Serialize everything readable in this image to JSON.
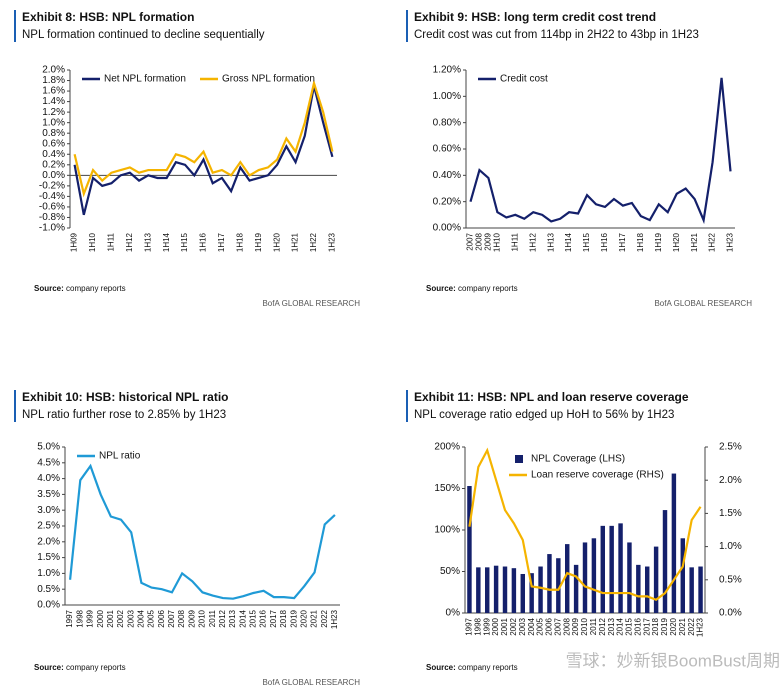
{
  "chart_data": [
    {
      "type": "line",
      "title": "Exhibit 8: HSB: NPL formation",
      "subtitle": "NPL formation continued to decline sequentially",
      "categories": [
        "1H09",
        null,
        "1H10",
        null,
        "1H11",
        null,
        "1H12",
        null,
        "1H13",
        null,
        "1H14",
        null,
        "1H15",
        null,
        "1H16",
        null,
        "1H17",
        null,
        "1H18",
        null,
        "1H19",
        null,
        "1H20",
        null,
        "1H21",
        null,
        "1H22",
        null,
        "1H23"
      ],
      "series": [
        {
          "name": "Net NPL formation",
          "color": "#14206b",
          "values": [
            0.2,
            -0.75,
            -0.05,
            -0.2,
            -0.15,
            0,
            0.05,
            -0.1,
            0,
            -0.05,
            -0.05,
            0.25,
            0.2,
            0,
            0.3,
            -0.15,
            -0.05,
            -0.3,
            0.15,
            -0.1,
            -0.05,
            0,
            0.2,
            0.55,
            0.25,
            0.75,
            1.7,
            1.0,
            0.35
          ]
        },
        {
          "name": "Gross NPL formation",
          "color": "#f5b400",
          "values": [
            0.4,
            -0.35,
            0.1,
            -0.1,
            0.05,
            0.1,
            0.15,
            0.05,
            0.1,
            0.1,
            0.1,
            0.4,
            0.35,
            0.25,
            0.45,
            0.05,
            0.1,
            0,
            0.25,
            0,
            0.1,
            0.15,
            0.3,
            0.7,
            0.45,
            1.0,
            1.75,
            1.2,
            0.45
          ]
        }
      ],
      "ylim": [
        -1.0,
        2.0
      ],
      "yticks": [
        {
          "value": -1.0,
          "label": "-1.0%"
        },
        {
          "value": -0.8,
          "label": "-0.8%"
        },
        {
          "value": -0.6,
          "label": "-0.6%"
        },
        {
          "value": -0.4,
          "label": "-0.4%"
        },
        {
          "value": -0.2,
          "label": "-0.2%"
        },
        {
          "value": 0,
          "label": "0.0%"
        },
        {
          "value": 0.2,
          "label": "0.2%"
        },
        {
          "value": 0.4,
          "label": "0.4%"
        },
        {
          "value": 0.6,
          "label": "0.6%"
        },
        {
          "value": 0.8,
          "label": "0.8%"
        },
        {
          "value": 1.0,
          "label": "1.0%"
        },
        {
          "value": 1.2,
          "label": "1.2%"
        },
        {
          "value": 1.4,
          "label": "1.4%"
        },
        {
          "value": 1.6,
          "label": "1.6%"
        },
        {
          "value": 1.8,
          "label": "1.8%"
        },
        {
          "value": 2.0,
          "label": "2.0%"
        }
      ],
      "source_label": "Source:",
      "source": "company reports",
      "footer": "BofA GLOBAL RESEARCH",
      "legend": "top"
    },
    {
      "type": "line",
      "title": "Exhibit 9: HSB: long term credit cost trend",
      "subtitle": "Credit cost was cut from 114bp in 2H22 to 43bp in 1H23",
      "categories": [
        "2007",
        "2008",
        "2009",
        "1H10",
        null,
        "1H11",
        null,
        "1H12",
        null,
        "1H13",
        null,
        "1H14",
        null,
        "1H15",
        null,
        "1H16",
        null,
        "1H17",
        null,
        "1H18",
        null,
        "1H19",
        null,
        "1H20",
        null,
        "1H21",
        null,
        "1H22",
        null,
        "1H23"
      ],
      "series": [
        {
          "name": "Credit cost",
          "color": "#14206b",
          "values": [
            0.2,
            0.44,
            0.38,
            0.12,
            0.08,
            0.1,
            0.07,
            0.12,
            0.1,
            0.05,
            0.07,
            0.12,
            0.11,
            0.25,
            0.18,
            0.16,
            0.22,
            0.17,
            0.19,
            0.09,
            0.06,
            0.18,
            0.12,
            0.26,
            0.3,
            0.22,
            0.06,
            0.5,
            1.14,
            0.43
          ]
        }
      ],
      "ylim": [
        0,
        1.2
      ],
      "yticks": [
        {
          "value": 0,
          "label": "0.00%"
        },
        {
          "value": 0.2,
          "label": "0.20%"
        },
        {
          "value": 0.4,
          "label": "0.40%"
        },
        {
          "value": 0.6,
          "label": "0.60%"
        },
        {
          "value": 0.8,
          "label": "0.80%"
        },
        {
          "value": 1.0,
          "label": "1.00%"
        },
        {
          "value": 1.2,
          "label": "1.20%"
        }
      ],
      "source_label": "Source:",
      "source": "company reports",
      "footer": "BofA GLOBAL RESEARCH",
      "legend": "top"
    },
    {
      "type": "line",
      "title": "Exhibit 10: HSB: historical NPL ratio",
      "subtitle": "NPL ratio further rose to 2.85% by 1H23",
      "categories": [
        "1997",
        "1998",
        "1999",
        "2000",
        "2001",
        "2002",
        "2003",
        "2004",
        "2005",
        "2006",
        "2007",
        "2008",
        "2009",
        "2010",
        "2011",
        "2012",
        "2013",
        "2014",
        "2015",
        "2016",
        "2017",
        "2018",
        "2019",
        "2020",
        "2021",
        "2022",
        "1H23"
      ],
      "series": [
        {
          "name": "NPL ratio",
          "color": "#1f9ad6",
          "values": [
            0.8,
            3.95,
            4.4,
            3.5,
            2.8,
            2.7,
            2.3,
            0.7,
            0.55,
            0.5,
            0.4,
            1.0,
            0.75,
            0.4,
            0.3,
            0.22,
            0.2,
            0.28,
            0.38,
            0.45,
            0.25,
            0.25,
            0.22,
            0.6,
            1.03,
            2.55,
            2.85
          ]
        }
      ],
      "ylim": [
        0,
        5.0
      ],
      "yticks": [
        {
          "value": 0,
          "label": "0.0%"
        },
        {
          "value": 0.5,
          "label": "0.5%"
        },
        {
          "value": 1.0,
          "label": "1.0%"
        },
        {
          "value": 1.5,
          "label": "1.5%"
        },
        {
          "value": 2.0,
          "label": "2.0%"
        },
        {
          "value": 2.5,
          "label": "2.5%"
        },
        {
          "value": 3.0,
          "label": "3.0%"
        },
        {
          "value": 3.5,
          "label": "3.5%"
        },
        {
          "value": 4.0,
          "label": "4.0%"
        },
        {
          "value": 4.5,
          "label": "4.5%"
        },
        {
          "value": 5.0,
          "label": "5.0%"
        }
      ],
      "source_label": "Source:",
      "source": "company reports",
      "footer": "BofA GLOBAL RESEARCH",
      "legend": "top"
    },
    {
      "type": "bar",
      "title": "Exhibit 11: HSB: NPL and loan reserve coverage",
      "subtitle": "NPL coverage ratio edged up HoH to 56% by 1H23",
      "categories": [
        "1997",
        "1998",
        "1999",
        "2000",
        "2001",
        "2002",
        "2003",
        "2004",
        "2005",
        "2006",
        "2007",
        "2008",
        "2009",
        "2010",
        "2011",
        "2012",
        "2013",
        "2014",
        "2015",
        "2016",
        "2017",
        "2018",
        "2019",
        "2020",
        "2021",
        "2022",
        "1H23"
      ],
      "series": [
        {
          "name": "NPL Coverage (LHS)",
          "color": "#14206b",
          "values": [
            153,
            55,
            55,
            57,
            56,
            54,
            47,
            48,
            56,
            71,
            66,
            83,
            58,
            85,
            90,
            105,
            105,
            108,
            85,
            58,
            56,
            80,
            124,
            168,
            90,
            55,
            56
          ]
        },
        {
          "name": "Loan reserve coverage (RHS)",
          "color": "#f5b400",
          "type": "line",
          "axis": "y2",
          "values": [
            1.3,
            2.2,
            2.45,
            2.0,
            1.55,
            1.35,
            1.1,
            0.4,
            0.38,
            0.35,
            0.35,
            0.6,
            0.55,
            0.4,
            0.35,
            0.3,
            0.3,
            0.3,
            0.3,
            0.25,
            0.25,
            0.2,
            0.3,
            0.5,
            0.7,
            1.4,
            1.6
          ]
        }
      ],
      "ylim": [
        0,
        200
      ],
      "yticks": [
        {
          "value": 0,
          "label": "0%"
        },
        {
          "value": 50,
          "label": "50%"
        },
        {
          "value": 100,
          "label": "100%"
        },
        {
          "value": 150,
          "label": "150%"
        },
        {
          "value": 200,
          "label": "200%"
        }
      ],
      "y2lim": [
        0,
        2.5
      ],
      "y2ticks": [
        {
          "value": 0,
          "label": "0.0%"
        },
        {
          "value": 0.5,
          "label": "0.5%"
        },
        {
          "value": 1.0,
          "label": "1.0%"
        },
        {
          "value": 1.5,
          "label": "1.5%"
        },
        {
          "value": 2.0,
          "label": "2.0%"
        },
        {
          "value": 2.5,
          "label": "2.5%"
        }
      ],
      "source_label": "Source:",
      "source": "company reports",
      "legend": "top"
    }
  ],
  "watermark": "雪球：妙新银BoomBust周期"
}
